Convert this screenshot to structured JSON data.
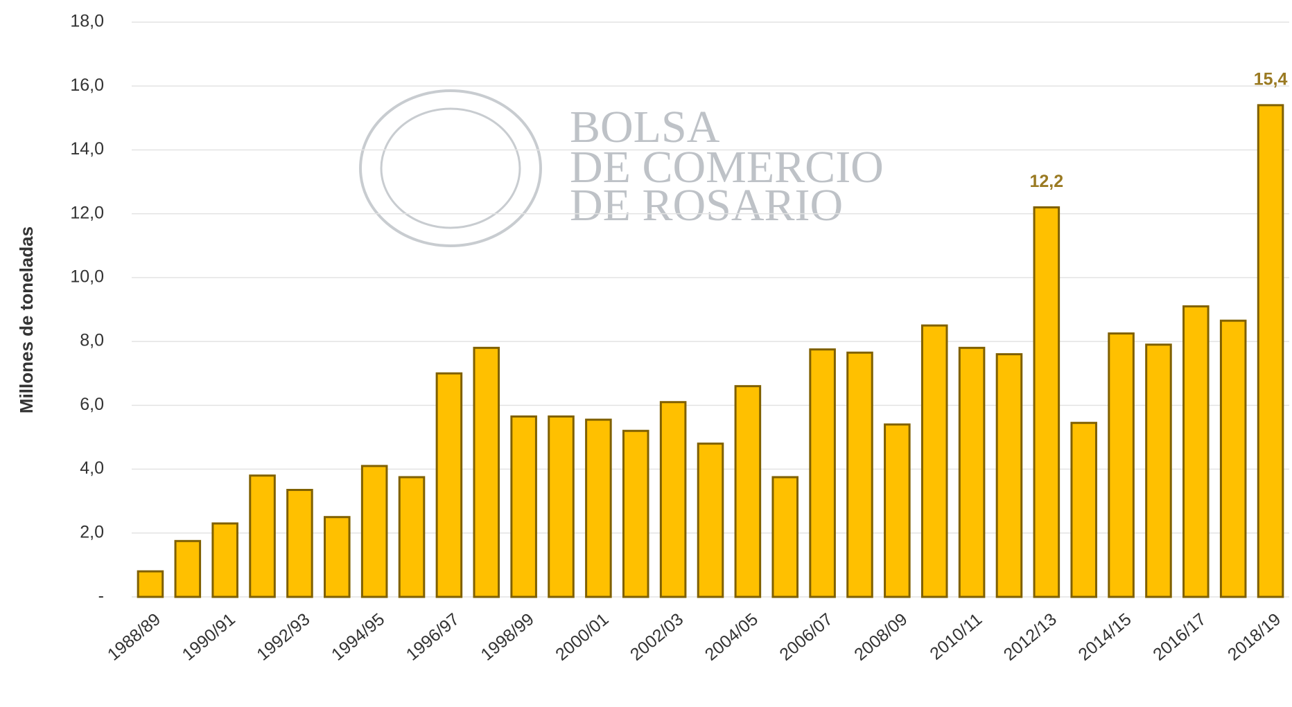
{
  "chart_data": {
    "type": "bar",
    "y_label": "Millones de toneladas",
    "watermark": [
      "BOLSA",
      "DE COMERCIO",
      "DE ROSARIO"
    ],
    "categories": [
      "1988/89",
      null,
      "1990/91",
      null,
      "1992/93",
      null,
      "1994/95",
      null,
      "1996/97",
      null,
      "1998/99",
      null,
      "2000/01",
      null,
      "2002/03",
      null,
      "2004/05",
      null,
      "2006/07",
      null,
      "2008/09",
      null,
      "2010/11",
      null,
      "2012/13",
      null,
      "2014/15",
      null,
      "2016/17",
      null,
      "2018/19"
    ],
    "values": [
      0.8,
      1.75,
      2.3,
      3.8,
      3.35,
      2.5,
      4.1,
      3.75,
      7.0,
      7.8,
      5.65,
      5.65,
      5.55,
      5.2,
      6.1,
      4.8,
      6.6,
      3.75,
      7.75,
      7.65,
      5.4,
      8.5,
      7.8,
      7.6,
      12.2,
      5.45,
      8.25,
      7.9,
      9.1,
      8.65,
      15.4
    ],
    "value_labels": [
      null,
      null,
      null,
      null,
      null,
      null,
      null,
      null,
      null,
      null,
      null,
      null,
      null,
      null,
      null,
      null,
      null,
      null,
      null,
      null,
      null,
      null,
      null,
      null,
      "12,2",
      null,
      null,
      null,
      null,
      null,
      "15,4"
    ],
    "color": "#ffc000",
    "edge_color": "#7f6000",
    "ylim": [
      0,
      18
    ],
    "yticks": [
      {
        "value": 0,
        "label": "-"
      },
      {
        "value": 2,
        "label": "2,0"
      },
      {
        "value": 4,
        "label": "4,0"
      },
      {
        "value": 6,
        "label": "6,0"
      },
      {
        "value": 8,
        "label": "8,0"
      },
      {
        "value": 10,
        "label": "10,0"
      },
      {
        "value": 12,
        "label": "12,0"
      },
      {
        "value": 14,
        "label": "14,0"
      },
      {
        "value": 16,
        "label": "16,0"
      },
      {
        "value": 18,
        "label": "18,0"
      }
    ],
    "grid": true
  }
}
